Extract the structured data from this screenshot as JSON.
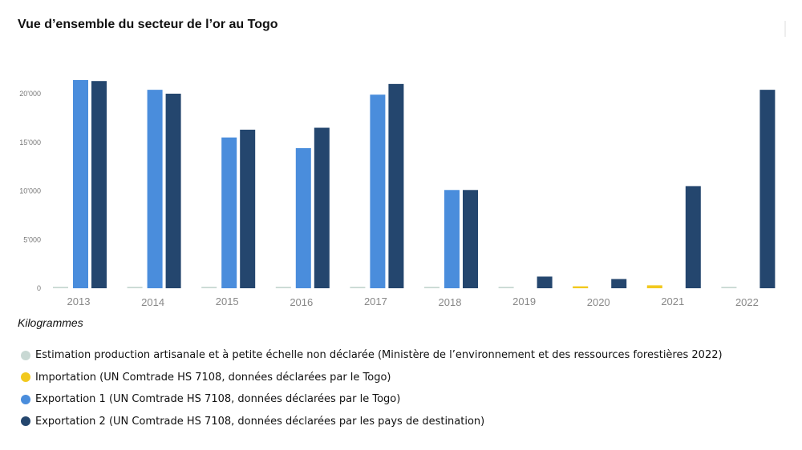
{
  "title": "Vue d’ensemble du secteur de l’or au Togo",
  "unit_label": "Kilogrammes",
  "colors": {
    "artisanal": "#c8d8d3",
    "import": "#f2c91e",
    "export1": "#4a8ddc",
    "export2": "#24466e",
    "background": "#ffffff"
  },
  "chart_data": {
    "type": "bar",
    "title": "Vue d’ensemble du secteur de l’or au Togo",
    "ylabel": "Kilogrammes",
    "xlabel": "",
    "ylim": [
      0,
      20000
    ],
    "yticks": [
      0,
      5000,
      10000,
      15000,
      20000
    ],
    "ytick_labels": [
      "0",
      "5'000",
      "10'000",
      "15'000",
      "20'000"
    ],
    "grid": false,
    "legend_position": "bottom",
    "categories": [
      "2013",
      "2014",
      "2015",
      "2016",
      "2017",
      "2018",
      "2019",
      "2020",
      "2021",
      "2022"
    ],
    "series": [
      {
        "name": "Estimation production artisanale et à petite échelle non déclarée (Ministère de l’environnement et des ressources forestières 2022)",
        "color": "#c8d8d3",
        "values": [
          150,
          150,
          150,
          150,
          150,
          150,
          150,
          150,
          150,
          150
        ]
      },
      {
        "name": "Importation (UN Comtrade HS 7108, données déclarées par le Togo)",
        "color": "#f2c91e",
        "values": [
          0,
          0,
          0,
          0,
          0,
          0,
          0,
          200,
          300,
          0
        ]
      },
      {
        "name": "Exportation 1 (UN Comtrade HS 7108, données déclarées par le Togo)",
        "color": "#4a8ddc",
        "values": [
          21400,
          20400,
          15500,
          14400,
          19900,
          10100,
          0,
          0,
          0,
          0
        ]
      },
      {
        "name": "Exportation 2 (UN Comtrade HS 7108, données déclarées par les pays de destination)",
        "color": "#24466e",
        "values": [
          21300,
          20000,
          16300,
          16500,
          21000,
          10100,
          1200,
          950,
          10500,
          20400
        ]
      }
    ]
  }
}
